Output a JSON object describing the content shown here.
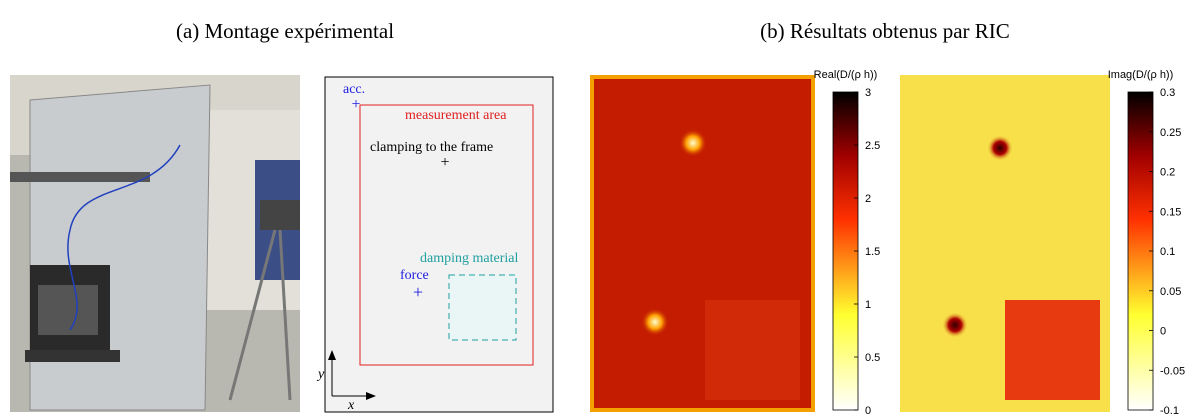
{
  "panel_a": {
    "caption": "(a) Montage expérimental",
    "diagram": {
      "acc": "acc.",
      "measurement_area": "measurement area",
      "clamping": "clamping to the frame",
      "damping": "damping material",
      "force": "force",
      "x_axis": "x",
      "y_axis": "y"
    }
  },
  "panel_b": {
    "caption": "(b) Résultats obtenus par RIC",
    "maps": [
      {
        "colorbar_label": "Real(D/(ρ h))",
        "clim": [
          0,
          3
        ],
        "ticks": [
          0,
          0.5,
          1,
          1.5,
          2,
          2.5,
          3
        ]
      },
      {
        "colorbar_label": "Imag(D/(ρ h))",
        "clim": [
          -0.1,
          0.3
        ],
        "ticks": [
          -0.1,
          -0.05,
          0,
          0.05,
          0.1,
          0.15,
          0.2,
          0.25,
          0.3
        ]
      }
    ]
  }
}
